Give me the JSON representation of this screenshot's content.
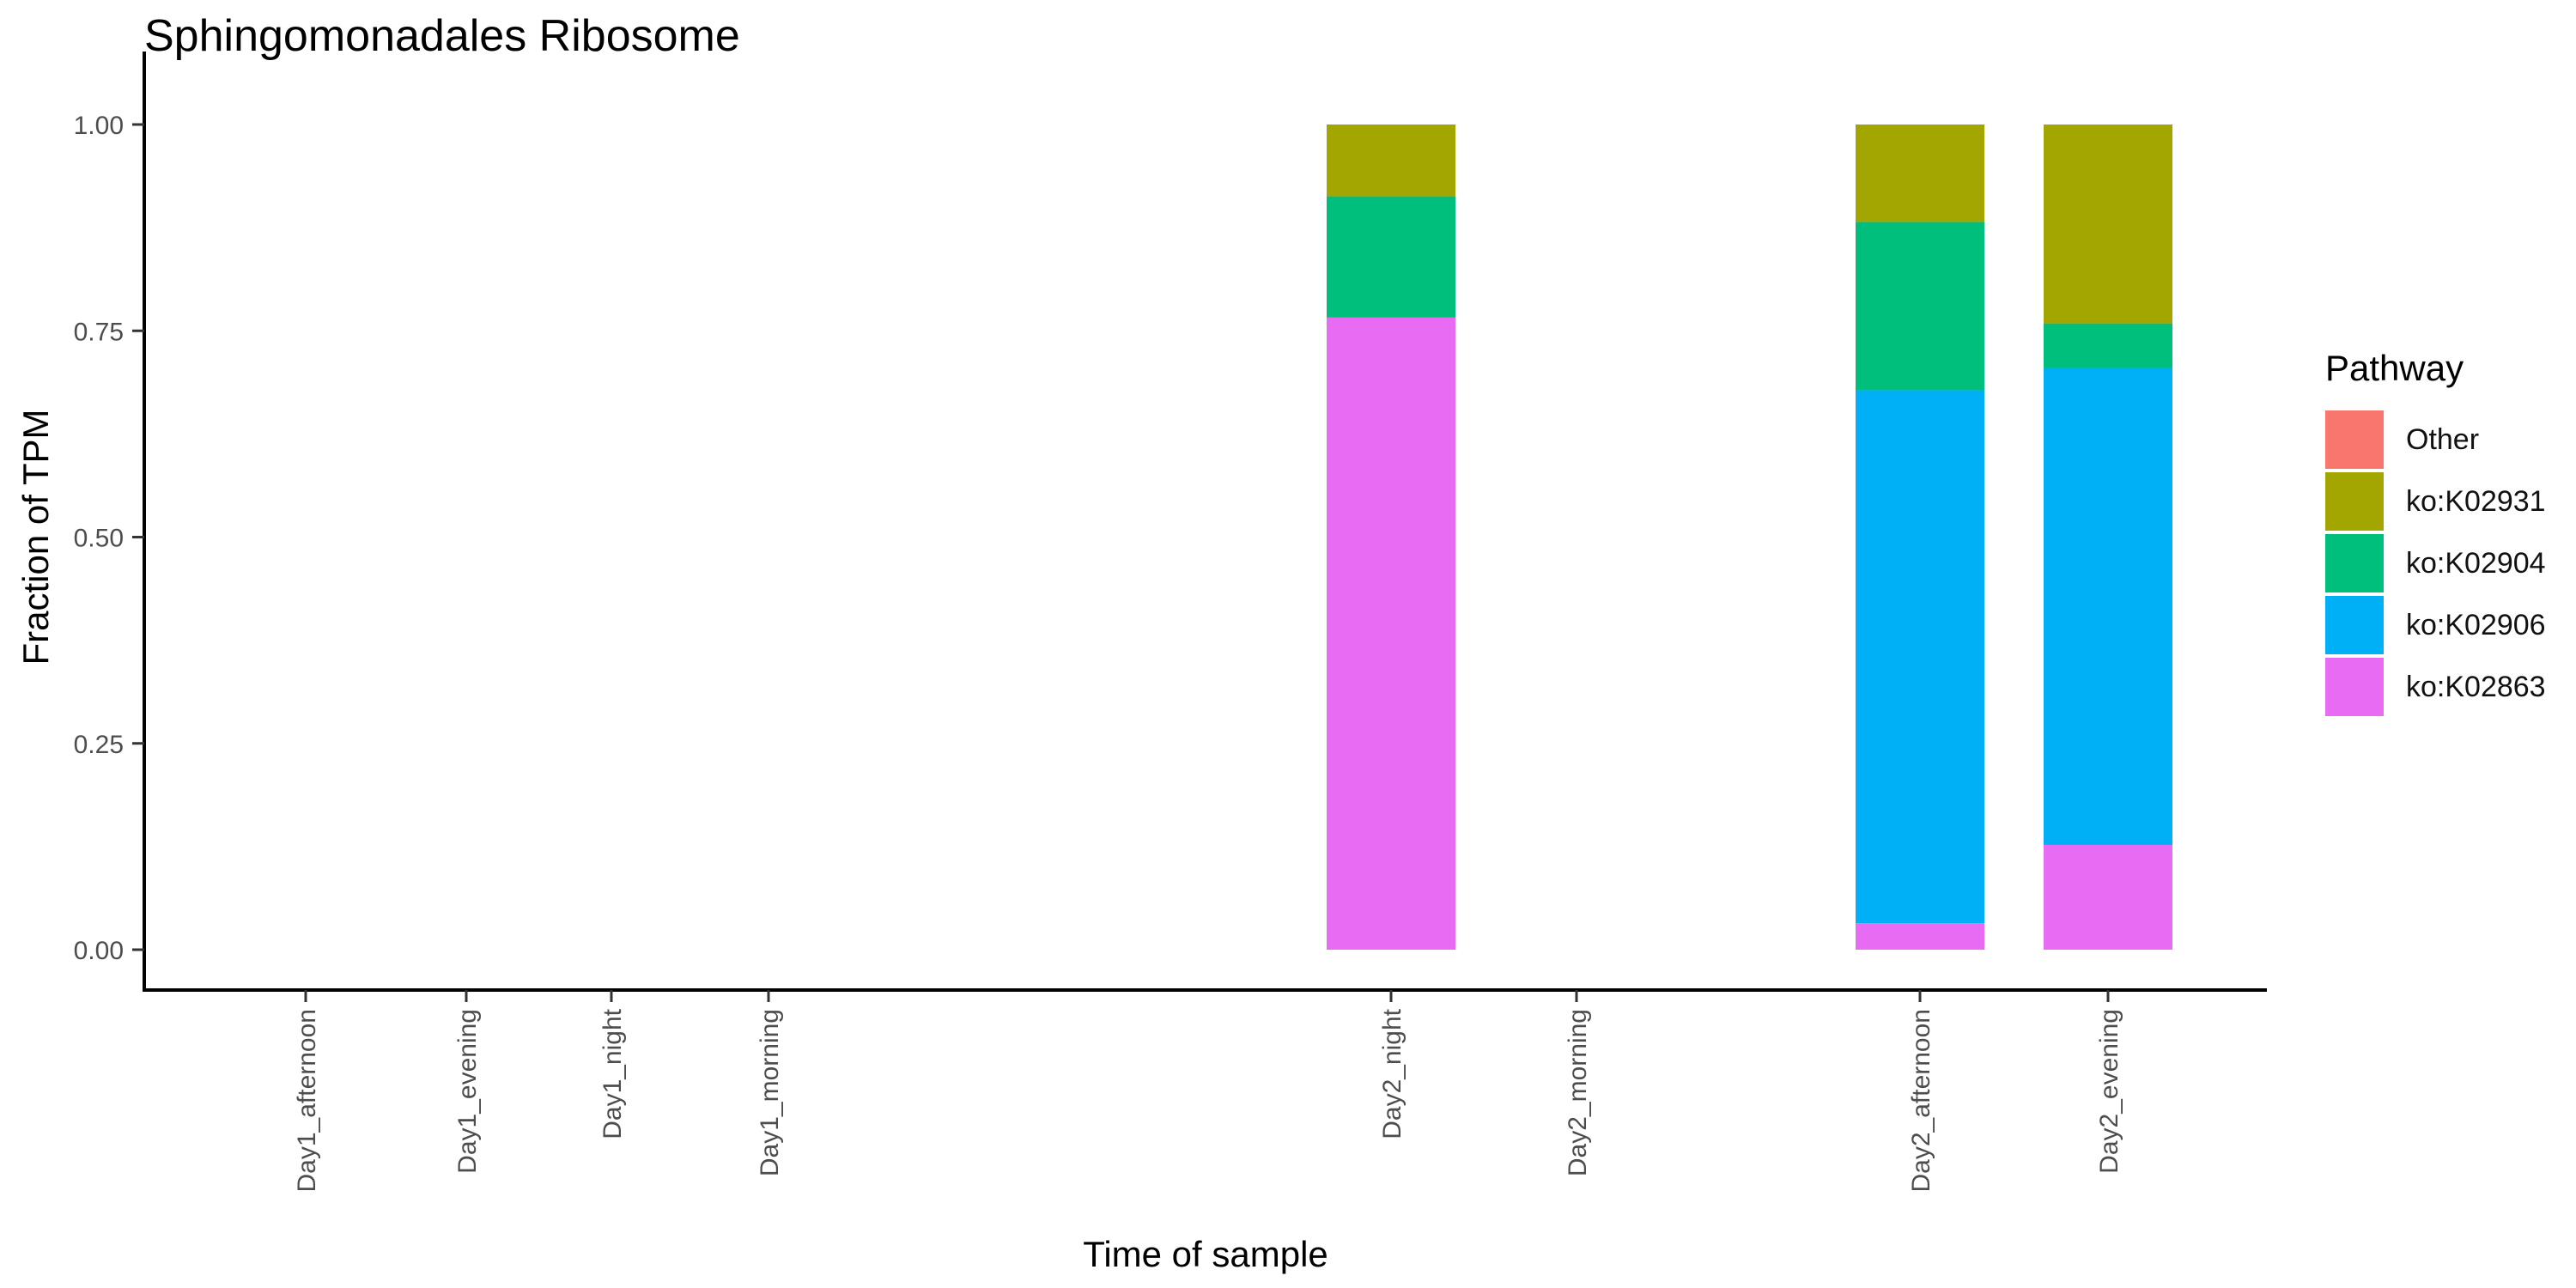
{
  "chart_data": {
    "type": "bar",
    "stacked": true,
    "title": "Sphingomonadales Ribosome",
    "xlabel": "Time of sample",
    "ylabel": "Fraction of TPM",
    "ylim": [
      0,
      1
    ],
    "yticks": [
      "0.00",
      "0.25",
      "0.50",
      "0.75",
      "1.00"
    ],
    "categories": [
      "Day1_afternoon",
      "Day1_evening",
      "Day1_night",
      "Day1_morning",
      "Day2_night",
      "Day2_morning",
      "Day2_afternoon",
      "Day2_evening"
    ],
    "series": [
      {
        "name": "Other",
        "color": "#F8766D",
        "values": [
          0,
          0,
          0,
          0,
          0,
          0,
          0,
          0
        ]
      },
      {
        "name": "ko:K02931",
        "color": "#A3A500",
        "values": [
          0,
          0,
          0,
          0,
          0.087,
          0,
          0.118,
          0.241
        ]
      },
      {
        "name": "ko:K02904",
        "color": "#00BF7D",
        "values": [
          0,
          0,
          0,
          0,
          0.147,
          0,
          0.204,
          0.054
        ]
      },
      {
        "name": "ko:K02906",
        "color": "#00B0F6",
        "values": [
          0,
          0,
          0,
          0,
          0,
          0,
          0.646,
          0.578
        ]
      },
      {
        "name": "ko:K02863",
        "color": "#E76BF3",
        "values": [
          0,
          0,
          0,
          0,
          0.766,
          0,
          0.032,
          0.127
        ]
      }
    ],
    "legend": {
      "title": "Pathway",
      "placement": "right"
    }
  }
}
